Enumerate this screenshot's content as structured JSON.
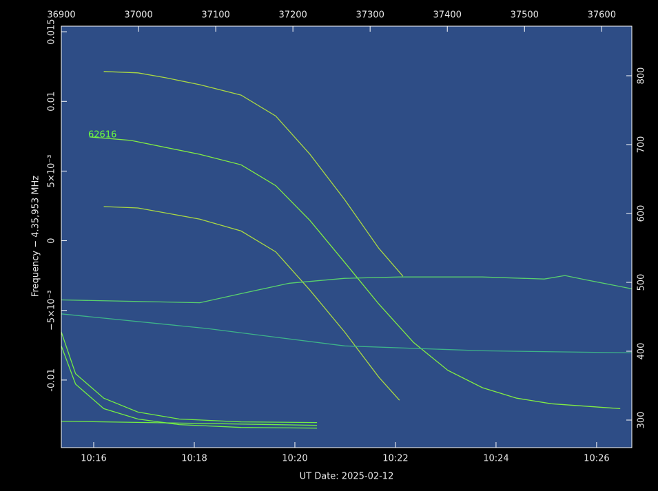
{
  "chart_data": {
    "type": "line",
    "x_label": "UT Date: 2025-02-12",
    "y_label": "Frequency − 4.35,953 MHz",
    "annotation": "62616",
    "background": "#2e4d86",
    "xlim": [
      15.356,
      26.7
    ],
    "xticks": [
      {
        "value": 16,
        "label": "10:16"
      },
      {
        "value": 18,
        "label": "10:18"
      },
      {
        "value": 20,
        "label": "10:20"
      },
      {
        "value": 22,
        "label": "10:22"
      },
      {
        "value": 24,
        "label": "10:24"
      },
      {
        "value": 26,
        "label": "10:26"
      }
    ],
    "x2lim": [
      36900,
      37639
    ],
    "x2ticks": [
      36900,
      37000,
      37100,
      37200,
      37300,
      37400,
      37500,
      37600
    ],
    "ylim": [
      -0.01485,
      0.0154
    ],
    "yticks": [
      0.015,
      0.01,
      {
        "value": 0.005,
        "label": "5×10⁻³"
      },
      0,
      {
        "value": -0.005,
        "label": "−5×10⁻³"
      },
      -0.01
    ],
    "y2lim": [
      260,
      872
    ],
    "y2ticks": [
      300,
      400,
      500,
      600,
      700,
      800
    ],
    "series": [
      {
        "color": "#8cff3c",
        "x": [
          15.918,
          16.74,
          18.11,
          18.93,
          19.62,
          20.3,
          20.99,
          21.67,
          22.36,
          23.04,
          23.73,
          24.41,
          25.1,
          26.47
        ],
        "values": [
          0.00745,
          0.0072,
          0.0062,
          0.00545,
          0.00395,
          0.00145,
          -0.00155,
          -0.00455,
          -0.0073,
          -0.0093,
          -0.01055,
          -0.0113,
          -0.0117,
          -0.01205
        ]
      },
      {
        "color": "#b8e83c",
        "x": [
          16.2,
          16.88,
          17.43,
          18.11,
          18.93,
          19.62,
          20.3,
          20.99,
          21.67,
          22.15
        ],
        "values": [
          0.01215,
          0.01205,
          0.0117,
          0.0112,
          0.01045,
          0.00895,
          0.0062,
          0.00295,
          -0.00055,
          -0.00255
        ]
      },
      {
        "color": "#b8e83c",
        "x": [
          16.2,
          16.88,
          18.11,
          18.93,
          19.62,
          20.3,
          20.99,
          21.67,
          22.08
        ],
        "values": [
          0.00245,
          0.00235,
          0.00155,
          0.0007,
          -0.0008,
          -0.00355,
          -0.00655,
          -0.0098,
          -0.01145
        ]
      },
      {
        "color": "#5ee06a",
        "x": [
          15.356,
          18.11,
          18.93,
          19.89,
          20.99,
          22.08,
          23.73,
          24.96,
          25.37,
          25.78,
          26.7
        ],
        "values": [
          -0.00425,
          -0.00445,
          -0.0038,
          -0.00305,
          -0.0027,
          -0.0026,
          -0.0026,
          -0.00275,
          -0.0025,
          -0.0028,
          -0.00345
        ]
      },
      {
        "color": "#3fbf8a",
        "x": [
          15.356,
          18.25,
          20.99,
          23.73,
          26.7
        ],
        "values": [
          -0.00525,
          -0.0063,
          -0.00755,
          -0.0079,
          -0.00805
        ]
      },
      {
        "color": "#7cff3c",
        "x": [
          15.356,
          15.64,
          16.2,
          16.88,
          17.7,
          18.93,
          20.44
        ],
        "values": [
          -0.00655,
          -0.00955,
          -0.0113,
          -0.0123,
          -0.0128,
          -0.013,
          -0.01305
        ]
      },
      {
        "color": "#7cff3c",
        "x": [
          15.356,
          15.64,
          16.2,
          16.88,
          17.7,
          18.93,
          20.44
        ],
        "values": [
          -0.00755,
          -0.0103,
          -0.01205,
          -0.0128,
          -0.0132,
          -0.0134,
          -0.01345
        ]
      },
      {
        "color": "#7cff3c",
        "x": [
          15.356,
          20.44
        ],
        "values": [
          -0.01295,
          -0.01325
        ]
      }
    ]
  }
}
